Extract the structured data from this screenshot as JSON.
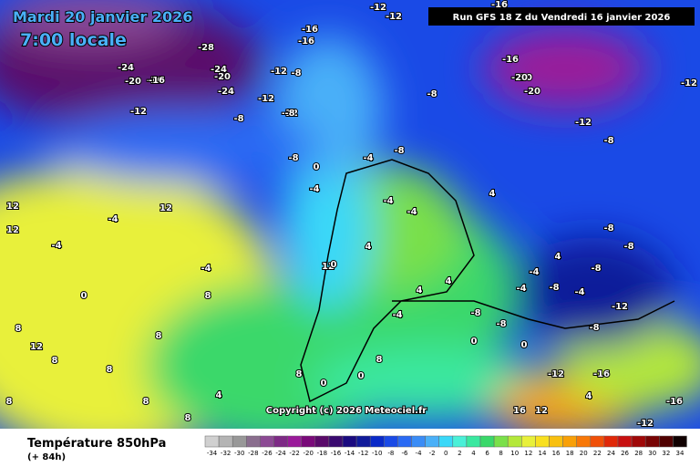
{
  "header": {
    "date": "Mardi 20 janvier 2026",
    "time": "7:00 locale",
    "run": "Run GFS 18 Z du Vendredi 16 janvier 2026"
  },
  "copyright": "Copyright (c) 2026 Meteociel.fr",
  "footer": {
    "title": "Température 850hPa",
    "lead": "(+ 84h)"
  },
  "scale": {
    "values": [
      -34,
      -32,
      -30,
      -28,
      -26,
      -24,
      -22,
      -20,
      -18,
      -16,
      -14,
      -12,
      -10,
      -8,
      -6,
      -4,
      -2,
      0,
      2,
      4,
      6,
      8,
      10,
      12,
      14,
      16,
      18,
      20,
      22,
      24,
      26,
      28,
      30,
      32,
      34
    ],
    "colors": [
      "#d0d0d0",
      "#b4b4b4",
      "#989898",
      "#8a6e8e",
      "#8c4a94",
      "#7e2a86",
      "#9a1a9a",
      "#7a0a7a",
      "#5a0a6a",
      "#3a0a70",
      "#1a0a80",
      "#101a9a",
      "#0a2ac8",
      "#1a4ae6",
      "#2a6af4",
      "#3a8cf6",
      "#4ab0f8",
      "#3ad8f8",
      "#4af0d8",
      "#3ae8a0",
      "#3ad86a",
      "#7ae04a",
      "#b4e83a",
      "#e8f03a",
      "#f8e020",
      "#f8c010",
      "#f8a008",
      "#f87808",
      "#f05008",
      "#e02808",
      "#c81010",
      "#a00808",
      "#780404",
      "#500000",
      "#100000"
    ]
  },
  "map_labels": [
    -16,
    -20,
    -12,
    -12,
    -16,
    -20,
    -16,
    -28,
    -24,
    -20,
    -16,
    -24,
    -12,
    -16,
    -24,
    -20,
    -12,
    -12,
    -8,
    -8,
    -12,
    -8,
    -12,
    -16,
    -20,
    -8,
    -12,
    -8,
    -8,
    -4,
    0,
    -8,
    -4,
    -4,
    -4,
    4,
    4,
    -8,
    -4,
    -8,
    -4,
    -8,
    -4,
    -8,
    -12,
    -8,
    -4,
    -4,
    12,
    12,
    12,
    -4,
    0,
    8,
    12,
    8,
    8,
    8,
    8,
    8,
    0,
    0,
    0,
    4,
    8,
    4,
    4,
    0,
    0,
    -4,
    -8,
    -8,
    4,
    8,
    8,
    8,
    12,
    4,
    -12,
    -16,
    -12,
    -16,
    16,
    12
  ]
}
